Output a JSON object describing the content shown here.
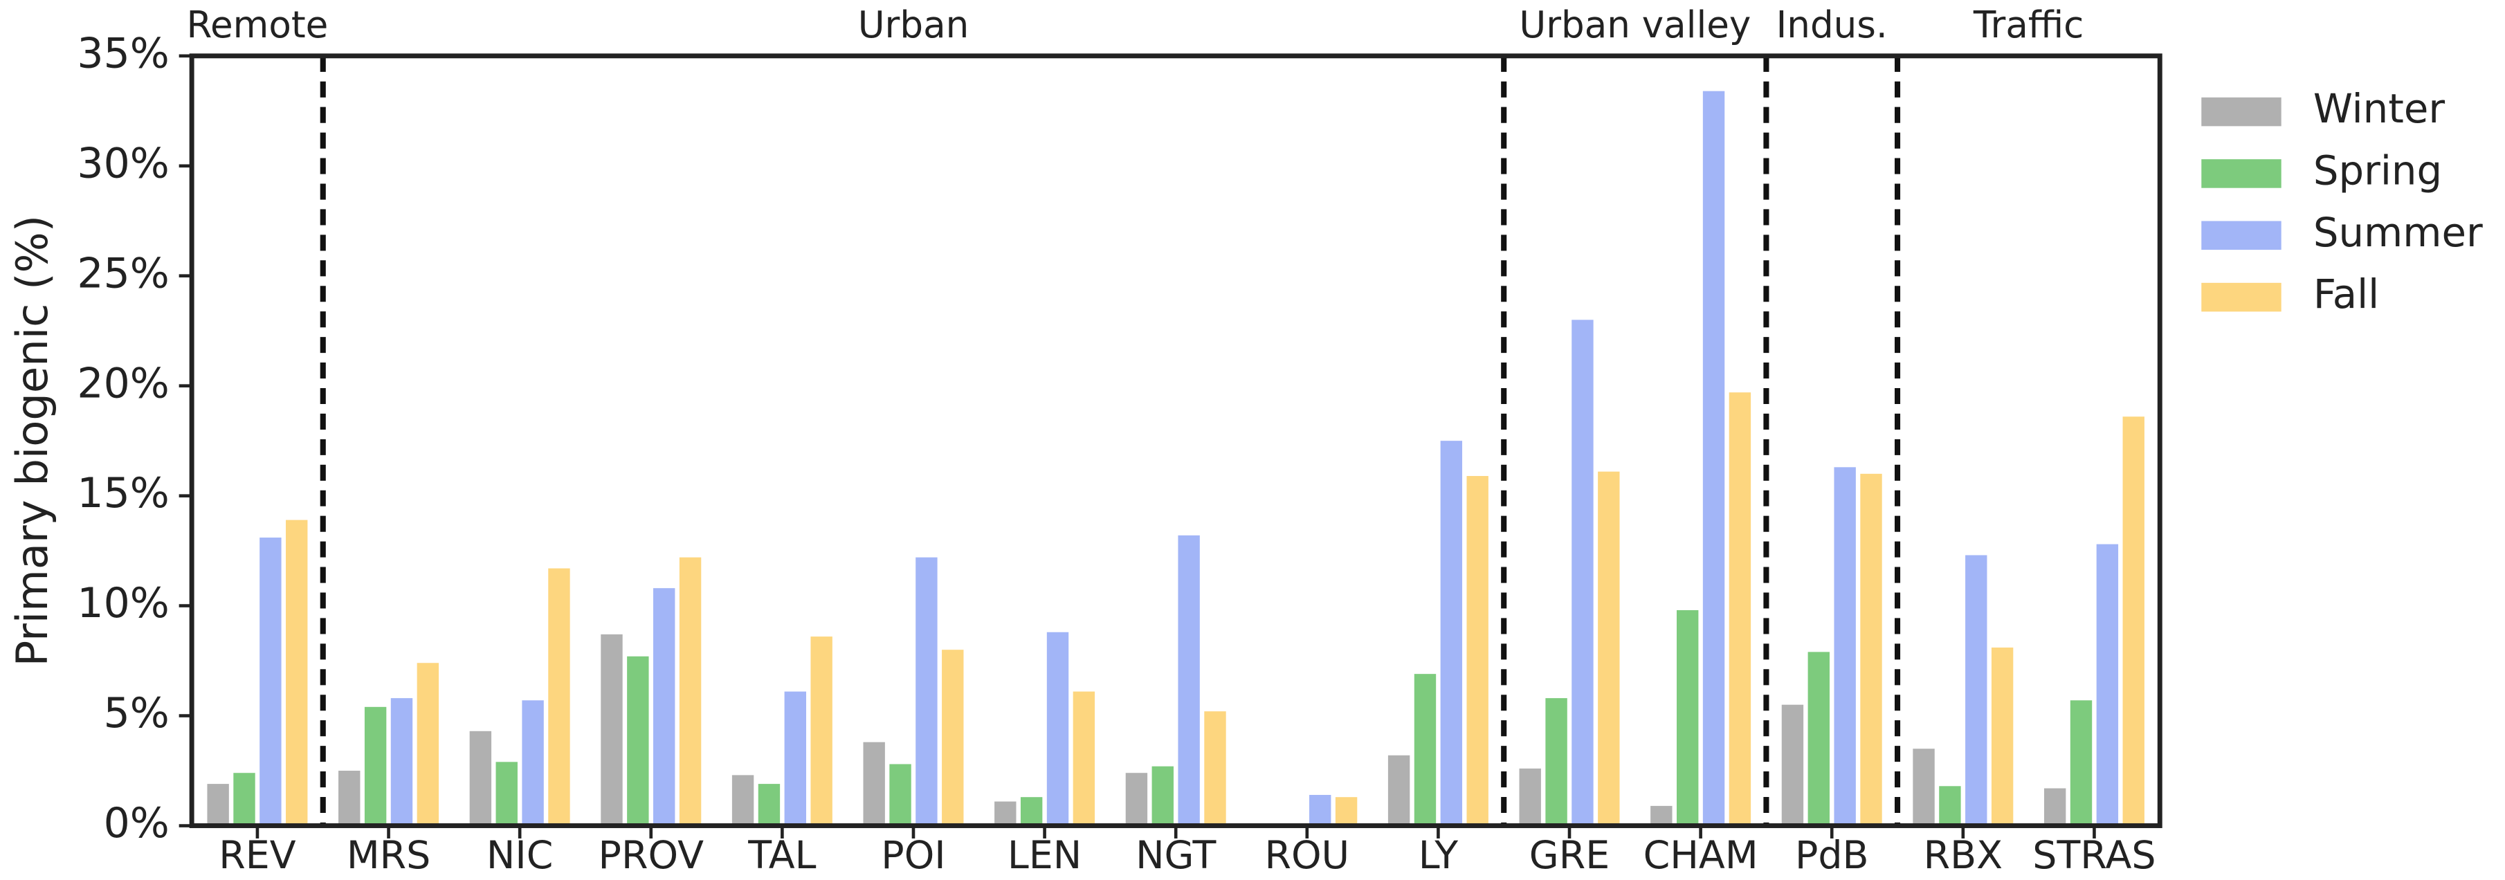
{
  "chart_data": {
    "type": "bar",
    "y_label": "Primary biogenic (%)",
    "categories": [
      "REV",
      "MRS",
      "NIC",
      "PROV",
      "TAL",
      "POI",
      "LEN",
      "NGT",
      "ROU",
      "LY",
      "GRE",
      "CHAM",
      "PdB",
      "RBX",
      "STRAS"
    ],
    "groups": [
      {
        "label": "Remote",
        "size": 1
      },
      {
        "label": "Urban",
        "size": 9
      },
      {
        "label": "Urban valley",
        "size": 2
      },
      {
        "label": "Indus.",
        "size": 1
      },
      {
        "label": "Traffic",
        "size": 2
      }
    ],
    "series": [
      {
        "name": "Winter",
        "color": "#b0b0b0",
        "values": [
          1.9,
          2.5,
          4.3,
          8.7,
          2.3,
          3.8,
          1.1,
          2.4,
          null,
          3.2,
          2.6,
          0.9,
          5.5,
          3.5,
          1.7
        ]
      },
      {
        "name": "Spring",
        "color": "#7dcb7d",
        "values": [
          2.4,
          5.4,
          2.9,
          7.7,
          1.9,
          2.8,
          1.3,
          2.7,
          null,
          6.9,
          5.8,
          9.8,
          7.9,
          1.8,
          5.7
        ]
      },
      {
        "name": "Summer",
        "color": "#a2b5f7",
        "values": [
          13.1,
          5.8,
          5.7,
          10.8,
          6.1,
          12.2,
          8.8,
          13.2,
          1.4,
          17.5,
          23.0,
          33.4,
          16.3,
          12.3,
          12.8
        ]
      },
      {
        "name": "Fall",
        "color": "#fdd67f",
        "values": [
          13.9,
          7.4,
          11.7,
          12.2,
          8.6,
          8.0,
          6.1,
          5.2,
          1.3,
          15.9,
          16.1,
          19.7,
          16.0,
          8.1,
          18.6
        ]
      }
    ],
    "ylim": [
      0,
      35
    ],
    "yticks": [
      {
        "value": 0,
        "label": "0%"
      },
      {
        "value": 5,
        "label": "5%"
      },
      {
        "value": 10,
        "label": "10%"
      },
      {
        "value": 15,
        "label": "15%"
      },
      {
        "value": 20,
        "label": "20%"
      },
      {
        "value": 25,
        "label": "25%"
      },
      {
        "value": 30,
        "label": "30%"
      },
      {
        "value": 35,
        "label": "35%"
      }
    ],
    "legend": "right"
  }
}
